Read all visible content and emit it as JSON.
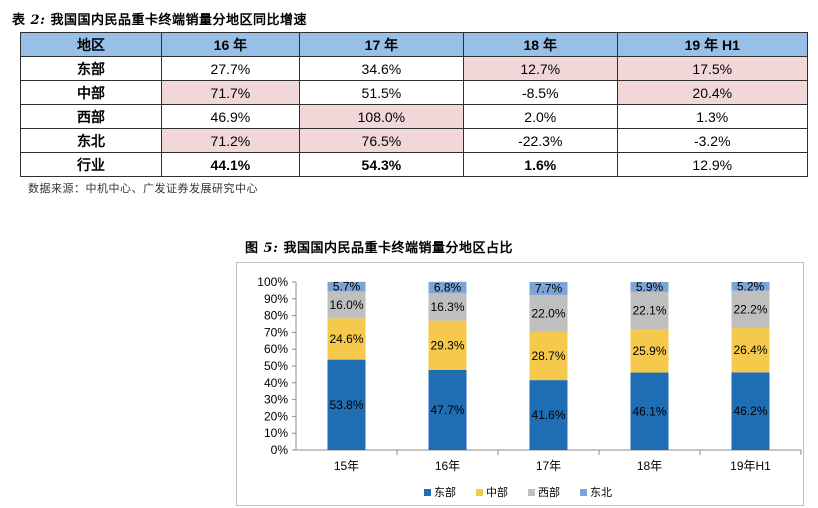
{
  "table": {
    "title_prefix": "表",
    "title_num": "2:",
    "title_text": "我国国内民品重卡终端销量分地区同比增速",
    "headers": [
      "地区",
      "16 年",
      "17 年",
      "18 年",
      "19 年 H1"
    ],
    "rows": [
      {
        "region": "东部",
        "values": [
          "27.7%",
          "34.6%",
          "12.7%",
          "17.5%"
        ],
        "highlight": [
          false,
          false,
          true,
          true
        ]
      },
      {
        "region": "中部",
        "values": [
          "71.7%",
          "51.5%",
          "-8.5%",
          "20.4%"
        ],
        "highlight": [
          true,
          false,
          false,
          true
        ]
      },
      {
        "region": "西部",
        "values": [
          "46.9%",
          "108.0%",
          "2.0%",
          "1.3%"
        ],
        "highlight": [
          false,
          true,
          false,
          false
        ]
      },
      {
        "region": "东北",
        "values": [
          "71.2%",
          "76.5%",
          "-22.3%",
          "-3.2%"
        ],
        "highlight": [
          true,
          true,
          false,
          false
        ]
      },
      {
        "region": "行业",
        "values": [
          "44.1%",
          "54.3%",
          "1.6%",
          "12.9%"
        ],
        "bold": [
          true,
          true,
          true,
          false
        ]
      }
    ],
    "highlight_color": "#f2d7d9",
    "header_color": "#98c0e6"
  },
  "source": "数据来源：中机中心、广发证券发展研究中心",
  "figure": {
    "title_prefix": "图",
    "title_num": "5:",
    "title_text": "我国国内民品重卡终端销量分地区占比"
  },
  "chart_data": {
    "type": "bar",
    "stacked": true,
    "categories": [
      "15年",
      "16年",
      "17年",
      "18年",
      "19年H1"
    ],
    "series": [
      {
        "name": "东部",
        "color": "#1f6db3",
        "values": [
          53.8,
          47.7,
          41.6,
          46.1,
          46.2
        ],
        "labels": [
          "53.8%",
          "47.7%",
          "41.6%",
          "46.1%",
          "46.2%"
        ]
      },
      {
        "name": "中部",
        "color": "#f4c94c",
        "values": [
          24.6,
          29.3,
          28.7,
          25.9,
          26.4
        ],
        "labels": [
          "24.6%",
          "29.3%",
          "28.7%",
          "25.9%",
          "26.4%"
        ]
      },
      {
        "name": "西部",
        "color": "#bfbfbf",
        "values": [
          16.0,
          16.3,
          22.0,
          22.1,
          22.2
        ],
        "labels": [
          "16.0%",
          "16.3%",
          "22.0%",
          "22.1%",
          "22.2%"
        ]
      },
      {
        "name": "东北",
        "color": "#7ea3d6",
        "values": [
          5.7,
          6.8,
          7.7,
          5.9,
          5.2
        ],
        "labels": [
          "5.7%",
          "6.8%",
          "7.7%",
          "5.9%",
          "5.2%"
        ]
      }
    ],
    "yticks": [
      "0%",
      "10%",
      "20%",
      "30%",
      "40%",
      "50%",
      "60%",
      "70%",
      "80%",
      "90%",
      "100%"
    ],
    "ylim": [
      0,
      100
    ],
    "legend_position": "bottom",
    "grid": false
  }
}
